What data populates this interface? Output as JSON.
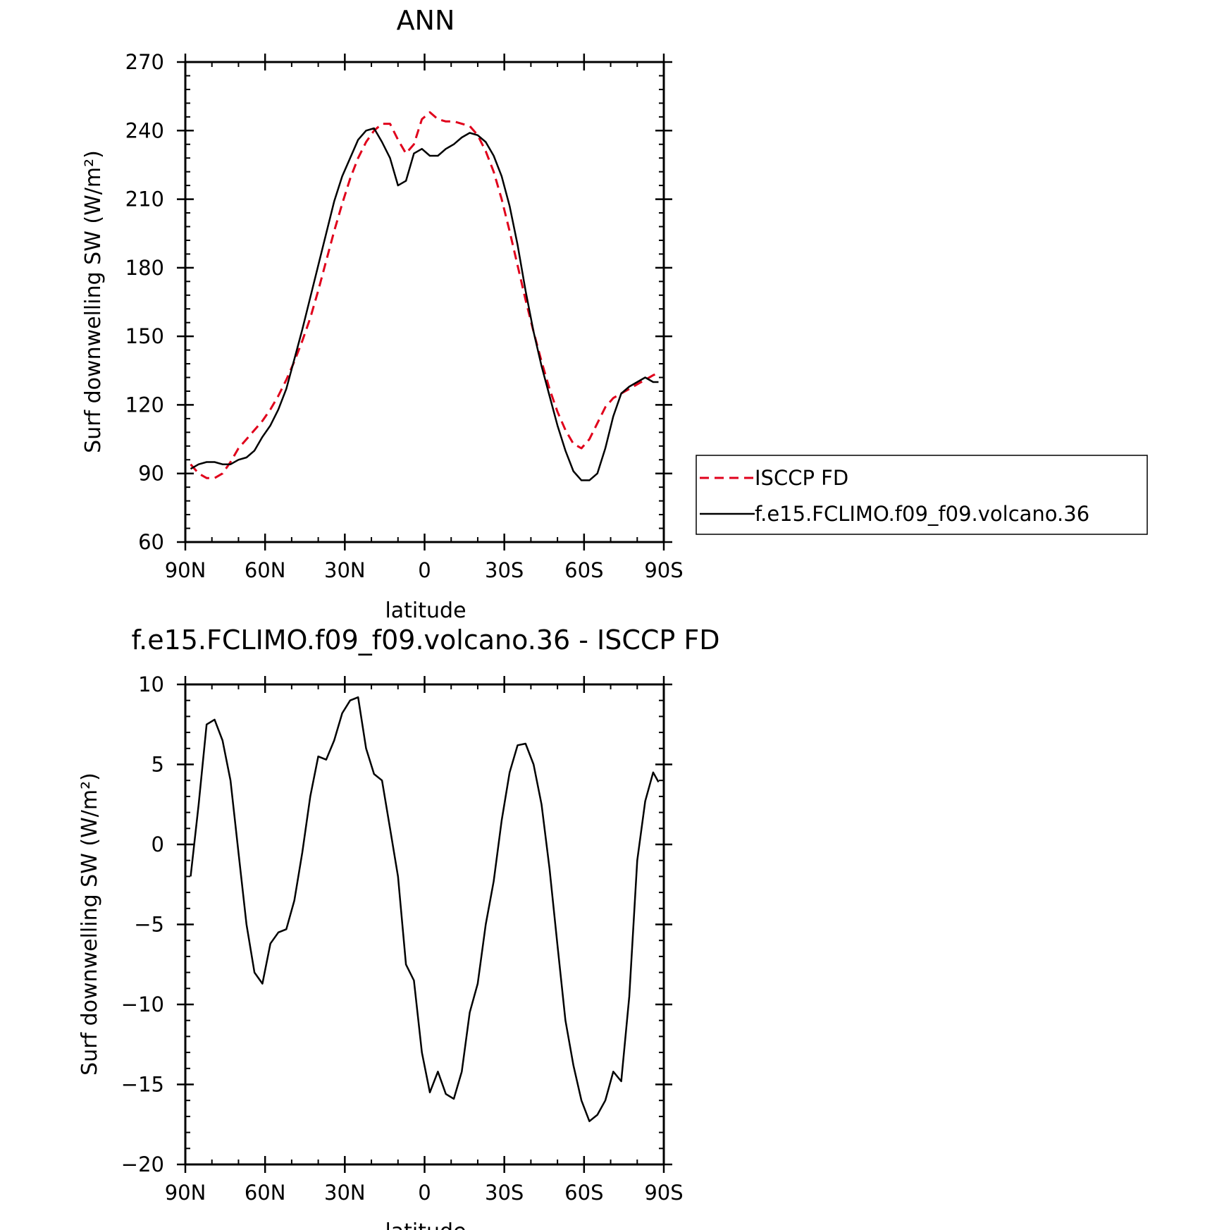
{
  "chart_data": [
    {
      "type": "line",
      "title": "ANN",
      "xlabel": "latitude",
      "ylabel": "Surf downwelling SW (W/m²)",
      "xlim": [
        -90,
        90
      ],
      "ylim": [
        60,
        270
      ],
      "xticks": [
        -90,
        -60,
        -30,
        0,
        30,
        60,
        90
      ],
      "xtick_labels": [
        "90N",
        "60N",
        "30N",
        "0",
        "30S",
        "60S",
        "90S"
      ],
      "yticks": [
        60,
        90,
        120,
        150,
        180,
        210,
        240,
        270
      ],
      "ytick_labels": [
        "60",
        "90",
        "120",
        "150",
        "180",
        "210",
        "240",
        "270"
      ],
      "grid": false,
      "legend_position": "right",
      "series": [
        {
          "name": "ISCCP FD",
          "color": "#e0001b",
          "dash": "dashed",
          "x": [
            -88,
            -85,
            -82,
            -79,
            -76,
            -73,
            -70,
            -67,
            -64,
            -61,
            -58,
            -55,
            -52,
            -49,
            -46,
            -43,
            -40,
            -37,
            -34,
            -31,
            -28,
            -25,
            -22,
            -19,
            -16,
            -13,
            -10,
            -7,
            -4,
            -1,
            2,
            5,
            8,
            11,
            14,
            17,
            20,
            23,
            26,
            29,
            32,
            35,
            38,
            41,
            44,
            47,
            50,
            53,
            56,
            59,
            62,
            65,
            68,
            71,
            74,
            77,
            80,
            83,
            86,
            88
          ],
          "y": [
            94,
            90,
            88,
            88,
            90,
            95,
            101,
            105,
            109,
            113,
            118,
            124,
            131,
            139,
            148,
            158,
            170,
            183,
            196,
            208,
            219,
            228,
            235,
            240,
            243,
            243,
            236,
            230,
            234,
            245,
            248,
            245,
            244,
            244,
            243,
            242,
            238,
            231,
            222,
            210,
            196,
            181,
            166,
            152,
            139,
            127,
            117,
            109,
            103,
            101,
            105,
            112,
            119,
            123,
            125,
            127,
            129,
            131,
            133,
            134
          ]
        },
        {
          "name": "f.e15.FCLIMO.f09_f09.volcano.36",
          "color": "#000000",
          "dash": "solid",
          "x": [
            -88,
            -85,
            -82,
            -79,
            -76,
            -73,
            -70,
            -67,
            -64,
            -61,
            -58,
            -55,
            -52,
            -49,
            -46,
            -43,
            -40,
            -37,
            -34,
            -31,
            -28,
            -25,
            -22,
            -19,
            -16,
            -13,
            -10,
            -7,
            -4,
            -1,
            2,
            5,
            8,
            11,
            14,
            17,
            20,
            23,
            26,
            29,
            32,
            35,
            38,
            41,
            44,
            47,
            50,
            53,
            56,
            59,
            62,
            65,
            68,
            71,
            74,
            77,
            80,
            83,
            86,
            88
          ],
          "y": [
            92,
            94,
            95,
            95,
            94,
            94,
            96,
            97,
            100,
            106,
            111,
            118,
            127,
            140,
            153,
            167,
            181,
            195,
            209,
            220,
            228,
            236,
            240,
            241,
            235,
            228,
            216,
            218,
            230,
            232,
            229,
            229,
            232,
            234,
            237,
            239,
            238,
            235,
            229,
            220,
            207,
            190,
            170,
            152,
            137,
            124,
            111,
            100,
            91,
            87,
            87,
            90,
            101,
            115,
            125,
            128,
            130,
            132,
            130,
            130
          ]
        }
      ]
    },
    {
      "type": "line",
      "title": "f.e15.FCLIMO.f09_f09.volcano.36 - ISCCP FD",
      "xlabel": "latitude",
      "ylabel": "Surf downwelling SW (W/m²)",
      "xlim": [
        -90,
        90
      ],
      "ylim": [
        -20,
        10
      ],
      "xticks": [
        -90,
        -60,
        -30,
        0,
        30,
        60,
        90
      ],
      "xtick_labels": [
        "90N",
        "60N",
        "30N",
        "0",
        "30S",
        "60S",
        "90S"
      ],
      "yticks": [
        -20,
        -15,
        -10,
        -5,
        0,
        5,
        10
      ],
      "ytick_labels": [
        "−20",
        "−15",
        "−10",
        "−5",
        "0",
        "5",
        "10"
      ],
      "grid": false,
      "series": [
        {
          "color": "#000000",
          "dash": "solid",
          "x": [
            -88,
            -85,
            -82,
            -79,
            -76,
            -73,
            -70,
            -67,
            -64,
            -61,
            -58,
            -55,
            -52,
            -49,
            -46,
            -43,
            -40,
            -37,
            -34,
            -31,
            -28,
            -25,
            -22,
            -19,
            -16,
            -13,
            -10,
            -7,
            -4,
            -1,
            2,
            5,
            8,
            11,
            14,
            17,
            20,
            23,
            26,
            29,
            32,
            35,
            38,
            41,
            44,
            47,
            50,
            53,
            56,
            59,
            62,
            65,
            68,
            71,
            74,
            77,
            80,
            83,
            86,
            88
          ],
          "y": [
            -2,
            2.5,
            7.5,
            7.8,
            6.5,
            4,
            -0.5,
            -5,
            -8,
            -8.7,
            -6.2,
            -5.5,
            -5.3,
            -3.5,
            -0.5,
            3,
            5.5,
            5.3,
            6.5,
            8.2,
            9,
            9.2,
            6,
            4.4,
            4,
            1,
            -2,
            -7.5,
            -8.5,
            -13,
            -15.5,
            -14.2,
            -15.6,
            -15.9,
            -14.2,
            -10.5,
            -8.7,
            -5,
            -2.3,
            1.5,
            4.5,
            6.2,
            6.3,
            5,
            2.5,
            -1.5,
            -6.3,
            -11,
            -13.8,
            -16,
            -17.3,
            -16.9,
            -16,
            -14.2,
            -14.8,
            -9.5,
            -1,
            2.7,
            4.5,
            3.9
          ]
        }
      ]
    }
  ]
}
